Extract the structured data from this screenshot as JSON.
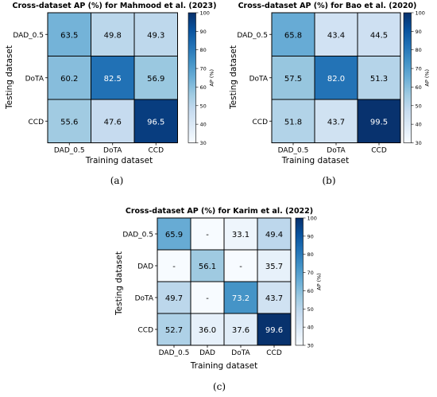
{
  "chart_data": [
    {
      "type": "heatmap",
      "title": "Cross-dataset AP (%) for Mahmood et al. (2023)",
      "xlabel": "Training dataset",
      "ylabel": "Testing dataset",
      "x_categories": [
        "DAD_0.5",
        "DoTA",
        "CCD"
      ],
      "y_categories": [
        "DAD_0.5",
        "DoTA",
        "CCD"
      ],
      "values": [
        [
          63.5,
          49.8,
          49.3
        ],
        [
          60.2,
          82.5,
          56.9
        ],
        [
          55.6,
          47.6,
          96.5
        ]
      ],
      "colorbar": {
        "label": "AP (%)",
        "min": 30,
        "max": 100,
        "ticks": [
          "30",
          "40",
          "50",
          "60",
          "70",
          "80",
          "90",
          "100"
        ]
      },
      "caption": "(a)"
    },
    {
      "type": "heatmap",
      "title": "Cross-dataset AP (%) for Bao et al. (2020)",
      "xlabel": "Training dataset",
      "ylabel": "Testing dataset",
      "x_categories": [
        "DAD_0.5",
        "DoTA",
        "CCD"
      ],
      "y_categories": [
        "DAD_0.5",
        "DoTA",
        "CCD"
      ],
      "values": [
        [
          65.8,
          43.4,
          44.5
        ],
        [
          57.5,
          82.0,
          51.3
        ],
        [
          51.8,
          43.7,
          99.5
        ]
      ],
      "colorbar": {
        "label": "AP (%)",
        "min": 30,
        "max": 100,
        "ticks": [
          "30",
          "40",
          "50",
          "60",
          "70",
          "80",
          "90",
          "100"
        ]
      },
      "caption": "(b)"
    },
    {
      "type": "heatmap",
      "title": "Cross-dataset AP (%) for Karim et al. (2022)",
      "xlabel": "Training dataset",
      "ylabel": "Testing dataset",
      "x_categories": [
        "DAD_0.5",
        "DAD",
        "DoTA",
        "CCD"
      ],
      "y_categories": [
        "DAD_0.5",
        "DAD",
        "DoTA",
        "CCD"
      ],
      "values": [
        [
          65.9,
          null,
          33.1,
          49.4
        ],
        [
          null,
          56.1,
          null,
          35.7
        ],
        [
          49.7,
          null,
          73.2,
          43.7
        ],
        [
          52.7,
          36.0,
          37.6,
          99.6
        ]
      ],
      "missing_label": "-",
      "colorbar": {
        "label": "AP (%)",
        "min": 30,
        "max": 100,
        "ticks": [
          "30",
          "40",
          "50",
          "60",
          "70",
          "80",
          "90",
          "100"
        ]
      },
      "caption": "(c)"
    }
  ]
}
